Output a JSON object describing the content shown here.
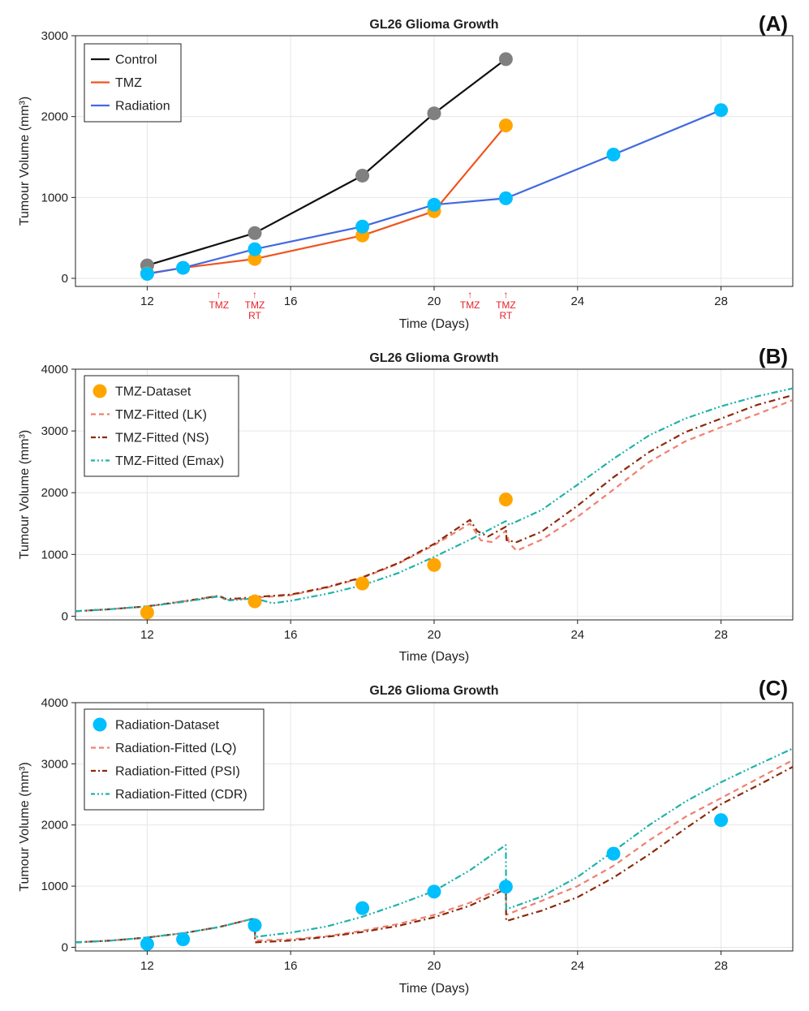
{
  "chart_data": [
    {
      "id": "A",
      "type": "line",
      "panel_label": "(A)",
      "title": "GL26 Glioma Growth",
      "xlabel": "Time (Days)",
      "ylabel": "Tumour Volume (mm³)",
      "xlim": [
        10,
        30
      ],
      "ylim": [
        -100,
        3000
      ],
      "xticks": [
        12,
        16,
        20,
        24,
        28
      ],
      "yticks": [
        0,
        1000,
        2000,
        3000
      ],
      "legend_position": "top-left",
      "series": [
        {
          "name": "Control",
          "color": "#111111",
          "marker_color": "#808080",
          "style": "solid",
          "x": [
            12,
            15,
            18,
            20,
            22
          ],
          "y": [
            160,
            560,
            1270,
            2040,
            2710
          ]
        },
        {
          "name": "TMZ",
          "color": "#f0541e",
          "marker_color": "#ffa500",
          "style": "solid",
          "x": [
            12,
            13,
            15,
            18,
            20,
            22
          ],
          "y": [
            60,
            130,
            240,
            530,
            830,
            1890
          ]
        },
        {
          "name": "Radiation",
          "color": "#4169e1",
          "marker_color": "#00bfff",
          "style": "solid",
          "x": [
            12,
            13,
            15,
            18,
            20,
            22,
            25,
            28
          ],
          "y": [
            55,
            130,
            360,
            640,
            910,
            990,
            1530,
            2080
          ]
        }
      ],
      "annotations": [
        {
          "x": 14,
          "lines": [
            "↑",
            "TMZ"
          ]
        },
        {
          "x": 15,
          "lines": [
            "↑",
            "TMZ",
            "RT"
          ]
        },
        {
          "x": 21,
          "lines": [
            "↑",
            "TMZ"
          ]
        },
        {
          "x": 22,
          "lines": [
            "↑",
            "TMZ",
            "RT"
          ]
        }
      ]
    },
    {
      "id": "B",
      "type": "line",
      "panel_label": "(B)",
      "title": "GL26 Glioma Growth",
      "xlabel": "Time (Days)",
      "ylabel": "Tumour Volume (mm³)",
      "xlim": [
        10,
        30
      ],
      "ylim": [
        -60,
        4000
      ],
      "xticks": [
        12,
        16,
        20,
        24,
        28
      ],
      "yticks": [
        0,
        1000,
        2000,
        3000,
        4000
      ],
      "legend_position": "top-left",
      "dataset": {
        "name": "TMZ-Dataset",
        "color": "#ffa500",
        "x": [
          12,
          15,
          18,
          20,
          22
        ],
        "y": [
          60,
          240,
          530,
          830,
          1890
        ]
      },
      "series": [
        {
          "name": "TMZ-Fitted (LK)",
          "color": "#f08070",
          "style": "dash",
          "x": [
            10,
            11,
            12,
            13,
            14,
            14.2,
            14.5,
            15,
            16,
            17,
            18,
            19,
            20,
            21,
            21.3,
            21.6,
            22,
            22.1,
            22.3,
            23,
            24,
            25,
            26,
            27,
            28,
            29,
            30
          ],
          "y": [
            80,
            115,
            160,
            240,
            330,
            260,
            270,
            300,
            340,
            460,
            620,
            850,
            1150,
            1500,
            1230,
            1200,
            1380,
            1180,
            1060,
            1240,
            1610,
            2050,
            2500,
            2830,
            3060,
            3270,
            3500
          ]
        },
        {
          "name": "TMZ-Fitted (NS)",
          "color": "#8b2a0a",
          "style": "dashdot",
          "x": [
            10,
            11,
            12,
            13,
            14,
            14.2,
            14.5,
            15,
            16,
            17,
            18,
            19,
            20,
            21,
            21.2,
            21.5,
            22,
            22.02,
            22.3,
            23,
            24,
            25,
            26,
            27,
            28,
            29,
            30
          ],
          "y": [
            80,
            115,
            160,
            240,
            330,
            280,
            285,
            310,
            350,
            470,
            630,
            860,
            1170,
            1560,
            1380,
            1290,
            1450,
            1230,
            1200,
            1370,
            1790,
            2250,
            2660,
            2980,
            3200,
            3420,
            3580
          ]
        },
        {
          "name": "TMZ-Fitted (Emax)",
          "color": "#20b2aa",
          "style": "dashdotdot",
          "x": [
            10,
            11,
            12,
            13,
            14,
            14.3,
            15,
            15.5,
            16,
            17,
            18,
            19,
            20,
            21,
            22,
            22.1,
            23,
            24,
            25,
            26,
            27,
            28,
            29,
            30
          ],
          "y": [
            80,
            115,
            160,
            230,
            320,
            255,
            290,
            210,
            250,
            360,
            500,
            700,
            960,
            1240,
            1540,
            1480,
            1720,
            2130,
            2550,
            2930,
            3200,
            3400,
            3560,
            3690
          ]
        }
      ]
    },
    {
      "id": "C",
      "type": "line",
      "panel_label": "(C)",
      "title": "GL26 Glioma Growth",
      "xlabel": "Time (Days)",
      "ylabel": "Tumour Volume (mm³)",
      "xlim": [
        10,
        30
      ],
      "ylim": [
        -60,
        4000
      ],
      "xticks": [
        12,
        16,
        20,
        24,
        28
      ],
      "yticks": [
        0,
        1000,
        2000,
        3000,
        4000
      ],
      "legend_position": "top-left",
      "dataset": {
        "name": "Radiation-Dataset",
        "color": "#00bfff",
        "x": [
          12,
          13,
          15,
          18,
          20,
          22,
          25,
          28
        ],
        "y": [
          55,
          130,
          360,
          640,
          910,
          990,
          1530,
          2080
        ]
      },
      "series": [
        {
          "name": "Radiation-Fitted (LQ)",
          "color": "#f08070",
          "style": "dash",
          "x": [
            10,
            11,
            12,
            13,
            14,
            14.9,
            15,
            15.01,
            16,
            17,
            18,
            19,
            20,
            21,
            21.99,
            22,
            22.01,
            23,
            24,
            25,
            26,
            27,
            28,
            29,
            30
          ],
          "y": [
            80,
            110,
            160,
            230,
            330,
            460,
            460,
            110,
            130,
            180,
            270,
            380,
            530,
            730,
            1000,
            1000,
            530,
            760,
            1000,
            1330,
            1750,
            2130,
            2440,
            2750,
            3060
          ]
        },
        {
          "name": "Radiation-Fitted (PSI)",
          "color": "#8b2a0a",
          "style": "dashdot",
          "x": [
            10,
            11,
            12,
            13,
            14,
            14.9,
            15,
            15.01,
            16,
            17,
            18,
            19,
            20,
            21,
            21.99,
            22,
            22.01,
            23,
            24,
            25,
            26,
            27,
            28,
            29,
            30
          ],
          "y": [
            80,
            110,
            160,
            230,
            330,
            460,
            460,
            80,
            110,
            170,
            250,
            350,
            490,
            680,
            950,
            950,
            430,
            600,
            820,
            1140,
            1520,
            1940,
            2340,
            2640,
            2950
          ]
        },
        {
          "name": "Radiation-Fitted (CDR)",
          "color": "#20b2aa",
          "style": "dashdotdot",
          "x": [
            10,
            11,
            12,
            13,
            14,
            14.9,
            15,
            15.01,
            16,
            17,
            18,
            19,
            20,
            21,
            21.99,
            22,
            22.01,
            23,
            24,
            25,
            26,
            27,
            28,
            29,
            30
          ],
          "y": [
            80,
            110,
            160,
            230,
            330,
            460,
            460,
            170,
            240,
            340,
            500,
            700,
            920,
            1260,
            1670,
            1670,
            620,
            830,
            1150,
            1570,
            2000,
            2380,
            2700,
            2980,
            3250
          ]
        }
      ]
    }
  ]
}
